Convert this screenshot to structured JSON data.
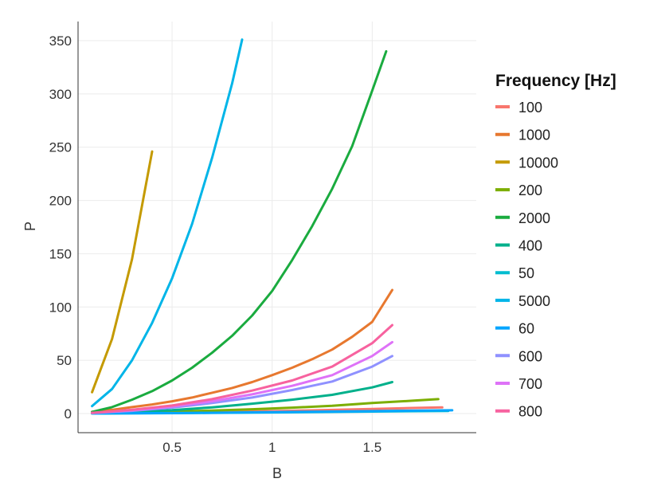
{
  "chart_data": {
    "type": "line",
    "title": "",
    "xlabel": "B",
    "ylabel": "P",
    "xlim": [
      0.03,
      2.02
    ],
    "ylim": [
      -18,
      368
    ],
    "xticks": [
      0.5,
      1,
      1.5
    ],
    "xtick_labels": [
      "0.5",
      "1",
      "1.5"
    ],
    "yticks": [
      0,
      50,
      100,
      150,
      200,
      250,
      300,
      350
    ],
    "ytick_labels": [
      "0",
      "50",
      "100",
      "150",
      "200",
      "250",
      "300",
      "350"
    ],
    "grid": true,
    "legend_title": "Frequency [Hz]",
    "legend_position": "right",
    "series": [
      {
        "name": "100",
        "color": "#F8766D",
        "x": [
          0.1,
          0.3,
          0.5,
          0.7,
          0.9,
          1.1,
          1.3,
          1.5,
          1.7,
          1.85
        ],
        "y": [
          0.1,
          0.4,
          0.8,
          1.3,
          1.9,
          2.6,
          3.4,
          4.3,
          5.2,
          5.7
        ]
      },
      {
        "name": "1000",
        "color": "#E7782F",
        "x": [
          0.1,
          0.2,
          0.3,
          0.4,
          0.5,
          0.6,
          0.7,
          0.8,
          0.9,
          1.0,
          1.1,
          1.2,
          1.3,
          1.4,
          1.5,
          1.6
        ],
        "y": [
          1.5,
          3.5,
          6,
          8.5,
          11.5,
          15,
          19.5,
          24,
          29.5,
          36,
          43,
          51,
          60,
          72,
          86,
          116
        ]
      },
      {
        "name": "10000",
        "color": "#C49A00",
        "x": [
          0.1,
          0.2,
          0.3,
          0.4
        ],
        "y": [
          20,
          70,
          145,
          246
        ]
      },
      {
        "name": "200",
        "color": "#7CAE00",
        "x": [
          0.1,
          0.3,
          0.5,
          0.7,
          0.9,
          1.1,
          1.3,
          1.5,
          1.7,
          1.83
        ],
        "y": [
          0.3,
          0.9,
          1.8,
          2.8,
          4,
          5.5,
          7.2,
          9.8,
          12,
          13.5
        ]
      },
      {
        "name": "2000",
        "color": "#1AAB3F",
        "x": [
          0.1,
          0.2,
          0.3,
          0.4,
          0.5,
          0.6,
          0.7,
          0.8,
          0.9,
          1.0,
          1.1,
          1.2,
          1.3,
          1.4,
          1.5,
          1.57
        ],
        "y": [
          1.5,
          6,
          13,
          21,
          31,
          43,
          57,
          73,
          92,
          115,
          144,
          176,
          211,
          251,
          303,
          340
        ]
      },
      {
        "name": "400",
        "color": "#00B08B",
        "x": [
          0.1,
          0.3,
          0.5,
          0.7,
          0.9,
          1.1,
          1.3,
          1.5,
          1.6
        ],
        "y": [
          0.3,
          1.5,
          3.2,
          5.8,
          9.2,
          13,
          17.5,
          24.5,
          29.5
        ]
      },
      {
        "name": "50",
        "color": "#00BDD0",
        "x": [
          0.1,
          0.5,
          1.0,
          1.5,
          1.88
        ],
        "y": [
          0.05,
          0.3,
          1,
          1.8,
          2.4
        ]
      },
      {
        "name": "5000",
        "color": "#00B5E8",
        "x": [
          0.1,
          0.2,
          0.3,
          0.4,
          0.5,
          0.6,
          0.7,
          0.8,
          0.85
        ],
        "y": [
          7,
          23,
          50,
          85,
          127,
          178,
          240,
          310,
          351
        ]
      },
      {
        "name": "60",
        "color": "#00A5FF",
        "x": [
          0.1,
          0.5,
          1.0,
          1.5,
          1.9
        ],
        "y": [
          0.05,
          0.4,
          1.2,
          2.2,
          3
        ]
      },
      {
        "name": "600",
        "color": "#8F91FF",
        "x": [
          0.1,
          0.3,
          0.5,
          0.7,
          0.9,
          1.1,
          1.3,
          1.5,
          1.6
        ],
        "y": [
          0.5,
          2.5,
          5.6,
          9.8,
          15,
          22,
          30,
          44,
          54
        ]
      },
      {
        "name": "700",
        "color": "#DE72F7",
        "x": [
          0.1,
          0.3,
          0.5,
          0.7,
          0.9,
          1.1,
          1.3,
          1.5,
          1.6
        ],
        "y": [
          0.5,
          3,
          6.5,
          11.5,
          18,
          26,
          36,
          54,
          67
        ]
      },
      {
        "name": "800",
        "color": "#F7629F",
        "x": [
          0.1,
          0.3,
          0.5,
          0.7,
          0.9,
          1.1,
          1.3,
          1.5,
          1.6
        ],
        "y": [
          0.6,
          3.5,
          7.5,
          13.5,
          21.5,
          31,
          44,
          66,
          83
        ]
      }
    ]
  }
}
